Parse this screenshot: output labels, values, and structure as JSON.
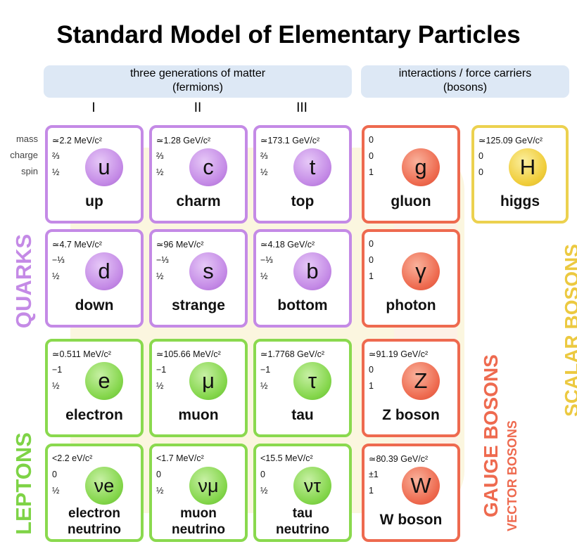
{
  "title": "Standard Model of Elementary Particles",
  "headers": {
    "fermions": [
      "three generations of matter",
      "(fermions)"
    ],
    "bosons": [
      "interactions / force carriers",
      "(bosons)"
    ]
  },
  "generations": [
    "I",
    "II",
    "III"
  ],
  "property_labels": [
    "mass",
    "charge",
    "spin"
  ],
  "group_labels": {
    "quarks": "QUARKS",
    "leptons": "LEPTONS",
    "gauge_bosons": "GAUGE BOSONS",
    "vector_bosons": "VECTOR BOSONS",
    "scalar_bosons": "SCALAR BOSONS"
  },
  "colors": {
    "quark": "#c48ae6",
    "lepton": "#8ad94e",
    "gauge": "#ee6a4f",
    "scalar": "#ecd14f",
    "header_bg": "#dde8f5",
    "quarks_label": "#c48ae6",
    "leptons_label": "#7ed346",
    "gauge_label": "#ee6a4f",
    "vector_label": "#ee6a4f",
    "scalar_label": "#ecc940"
  },
  "particles": [
    {
      "id": "up",
      "symbol": "u",
      "name": [
        "up"
      ],
      "mass": "≃2.2 MeV/c²",
      "charge": "⅔",
      "spin": "½",
      "kind": "quark"
    },
    {
      "id": "charm",
      "symbol": "c",
      "name": [
        "charm"
      ],
      "mass": "≃1.28 GeV/c²",
      "charge": "⅔",
      "spin": "½",
      "kind": "quark"
    },
    {
      "id": "top",
      "symbol": "t",
      "name": [
        "top"
      ],
      "mass": "≃173.1 GeV/c²",
      "charge": "⅔",
      "spin": "½",
      "kind": "quark"
    },
    {
      "id": "gluon",
      "symbol": "g",
      "name": [
        "gluon"
      ],
      "mass": "0",
      "charge": "0",
      "spin": "1",
      "kind": "gauge"
    },
    {
      "id": "higgs",
      "symbol": "H",
      "name": [
        "higgs"
      ],
      "mass": "≃125.09 GeV/c²",
      "charge": "0",
      "spin": "0",
      "kind": "scalar"
    },
    {
      "id": "down",
      "symbol": "d",
      "name": [
        "down"
      ],
      "mass": "≃4.7 MeV/c²",
      "charge": "−⅓",
      "spin": "½",
      "kind": "quark"
    },
    {
      "id": "strange",
      "symbol": "s",
      "name": [
        "strange"
      ],
      "mass": "≃96 MeV/c²",
      "charge": "−⅓",
      "spin": "½",
      "kind": "quark"
    },
    {
      "id": "bottom",
      "symbol": "b",
      "name": [
        "bottom"
      ],
      "mass": "≃4.18 GeV/c²",
      "charge": "−⅓",
      "spin": "½",
      "kind": "quark"
    },
    {
      "id": "photon",
      "symbol": "γ",
      "name": [
        "photon"
      ],
      "mass": "0",
      "charge": "0",
      "spin": "1",
      "kind": "gauge"
    },
    {
      "id": "electron",
      "symbol": "e",
      "name": [
        "electron"
      ],
      "mass": "≃0.511 MeV/c²",
      "charge": "−1",
      "spin": "½",
      "kind": "lepton"
    },
    {
      "id": "muon",
      "symbol": "μ",
      "name": [
        "muon"
      ],
      "mass": "≃105.66 MeV/c²",
      "charge": "−1",
      "spin": "½",
      "kind": "lepton"
    },
    {
      "id": "tau",
      "symbol": "τ",
      "name": [
        "tau"
      ],
      "mass": "≃1.7768 GeV/c²",
      "charge": "−1",
      "spin": "½",
      "kind": "lepton"
    },
    {
      "id": "z-boson",
      "symbol": "Z",
      "name": [
        "Z boson"
      ],
      "mass": "≃91.19 GeV/c²",
      "charge": "0",
      "spin": "1",
      "kind": "gauge"
    },
    {
      "id": "electron-neutrino",
      "symbol": "νe",
      "name": [
        "electron",
        "neutrino"
      ],
      "mass": "<2.2 eV/c²",
      "charge": "0",
      "spin": "½",
      "kind": "lepton"
    },
    {
      "id": "muon-neutrino",
      "symbol": "νμ",
      "name": [
        "muon",
        "neutrino"
      ],
      "mass": "<1.7 MeV/c²",
      "charge": "0",
      "spin": "½",
      "kind": "lepton"
    },
    {
      "id": "tau-neutrino",
      "symbol": "ντ",
      "name": [
        "tau",
        "neutrino"
      ],
      "mass": "<15.5 MeV/c²",
      "charge": "0",
      "spin": "½",
      "kind": "lepton"
    },
    {
      "id": "w-boson",
      "symbol": "W",
      "name": [
        "W boson"
      ],
      "mass": "≃80.39 GeV/c²",
      "charge": "±1",
      "spin": "1",
      "kind": "gauge"
    }
  ]
}
